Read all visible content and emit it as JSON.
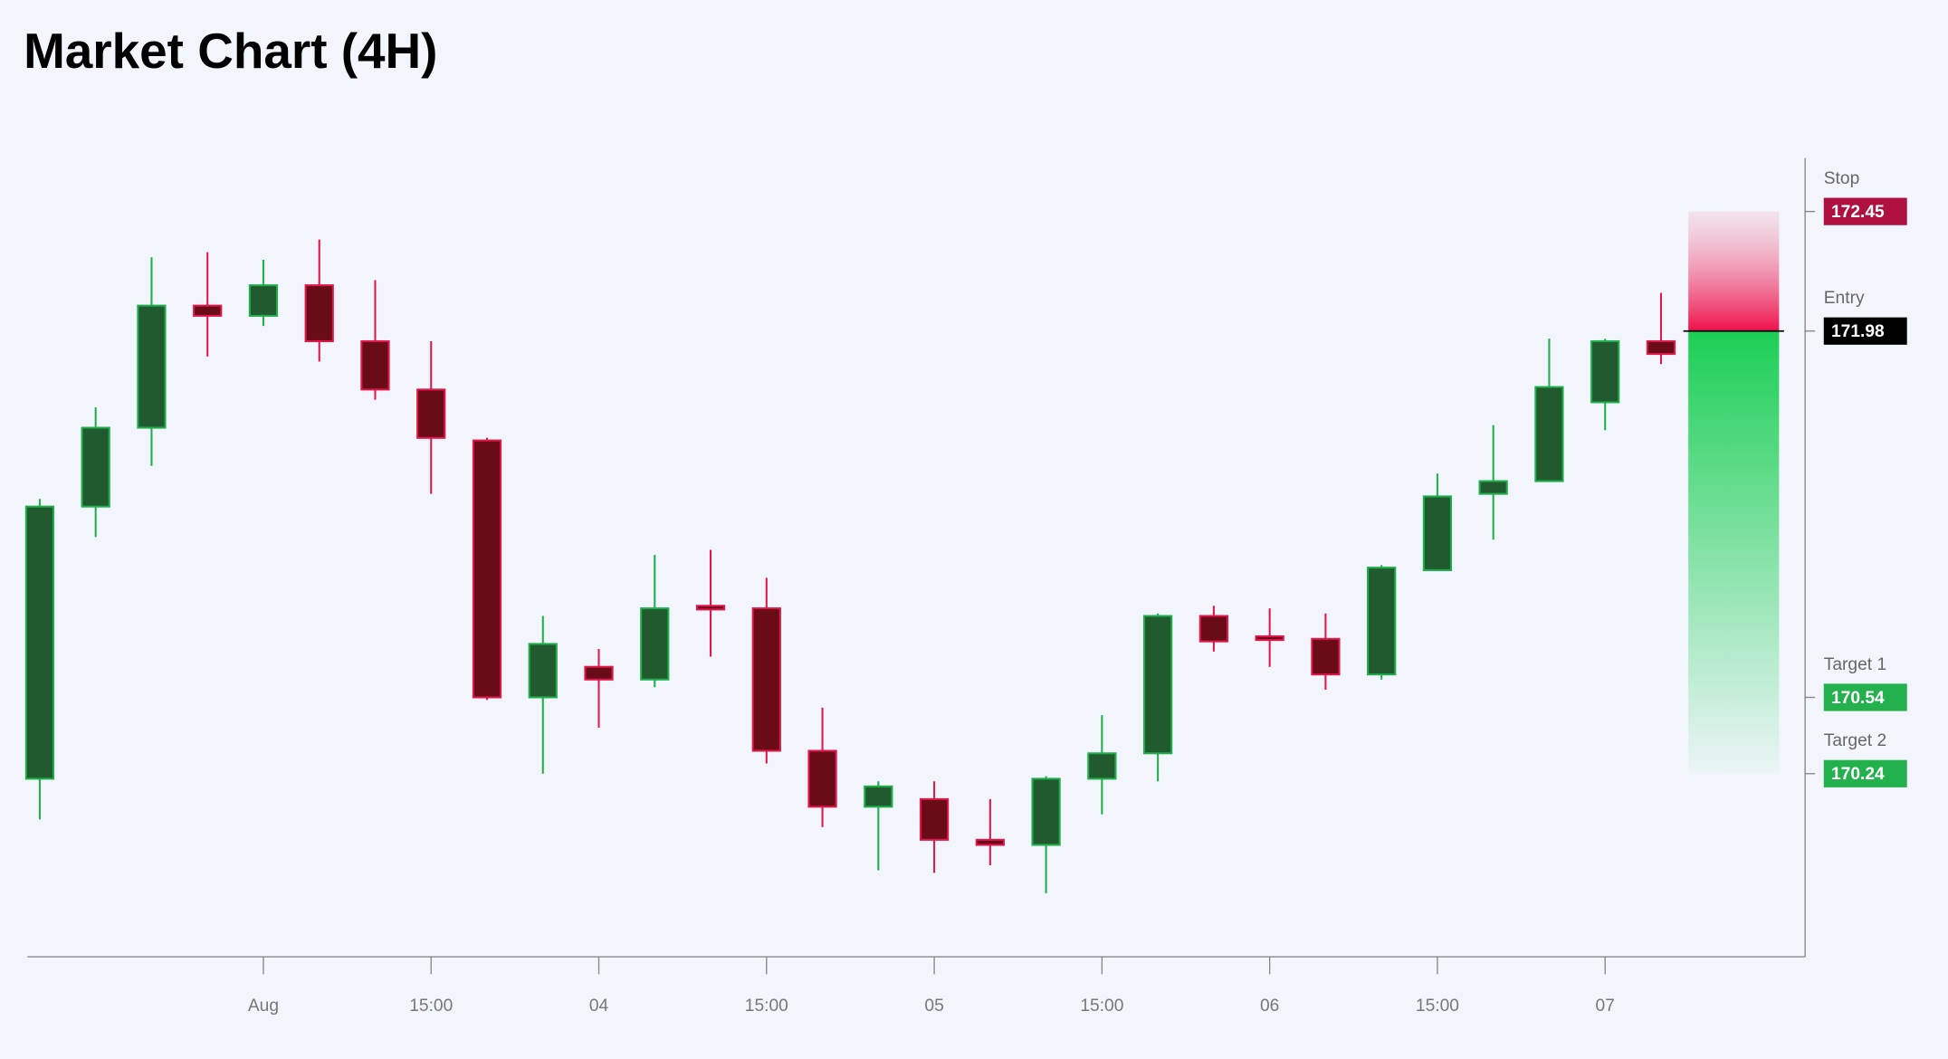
{
  "chart_data": {
    "type": "candlestick",
    "title": "Market Chart (4H)",
    "categories": [
      null,
      null,
      null,
      null,
      "Aug",
      null,
      null,
      "15:00",
      null,
      null,
      "04",
      null,
      null,
      "15:00",
      null,
      null,
      "05",
      null,
      null,
      "15:00",
      null,
      null,
      "06",
      null,
      null,
      "15:00",
      null,
      null,
      "07",
      null
    ],
    "open": [
      170.22,
      171.29,
      171.6,
      172.08,
      172.04,
      172.16,
      171.94,
      171.75,
      171.55,
      170.54,
      170.66,
      170.61,
      170.9,
      170.89,
      170.33,
      170.11,
      170.14,
      169.98,
      169.96,
      170.22,
      170.32,
      170.86,
      170.78,
      170.77,
      170.63,
      171.04,
      171.34,
      171.39,
      171.7,
      171.94
    ],
    "high": [
      171.32,
      171.68,
      172.27,
      172.29,
      172.26,
      172.34,
      172.18,
      171.94,
      171.56,
      170.86,
      170.73,
      171.1,
      171.12,
      171.01,
      170.5,
      170.21,
      170.21,
      170.14,
      170.23,
      170.47,
      170.87,
      170.9,
      170.89,
      170.87,
      171.06,
      171.42,
      171.61,
      171.95,
      171.95,
      172.13
    ],
    "low": [
      170.06,
      171.17,
      171.45,
      171.88,
      172.0,
      171.86,
      171.71,
      171.34,
      170.53,
      170.24,
      170.42,
      170.58,
      170.7,
      170.28,
      170.03,
      169.86,
      169.85,
      169.88,
      169.77,
      170.08,
      170.21,
      170.72,
      170.66,
      170.57,
      170.61,
      171.04,
      171.16,
      171.39,
      171.59,
      171.85
    ],
    "close": [
      171.29,
      171.6,
      172.08,
      172.04,
      172.16,
      171.94,
      171.75,
      171.56,
      170.54,
      170.75,
      170.61,
      170.89,
      170.89,
      170.33,
      170.11,
      170.19,
      169.98,
      169.96,
      170.22,
      170.32,
      170.86,
      170.76,
      170.77,
      170.63,
      171.05,
      171.33,
      171.39,
      171.76,
      171.94,
      171.89
    ],
    "up_color": "#1fae4b",
    "up_body": "#225a30",
    "down_color": "#e0174a",
    "down_body": "#6a0c18",
    "ylim": [
      169.52,
      172.66
    ],
    "levels": [
      {
        "label": "Stop",
        "value": 172.45,
        "color": "#b01040"
      },
      {
        "label": "Entry",
        "value": 171.98,
        "color": "#000000"
      },
      {
        "label": "Target 1",
        "value": 170.54,
        "color": "#22b14c"
      },
      {
        "label": "Target 2",
        "value": 170.24,
        "color": "#22b14c"
      }
    ]
  }
}
